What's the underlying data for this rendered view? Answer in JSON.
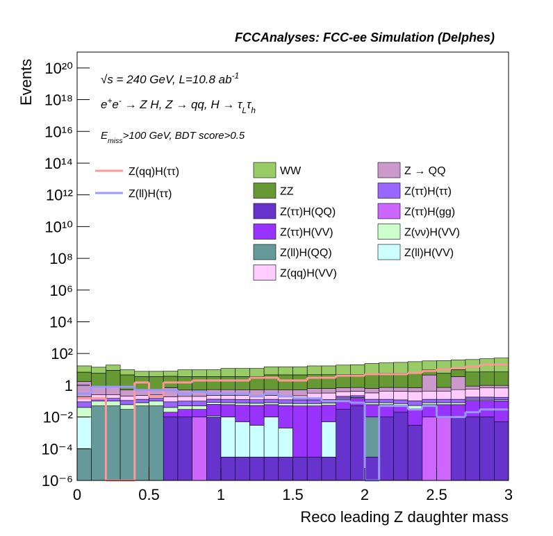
{
  "chart_data": {
    "type": "stacked-histogram",
    "title": "FCCAnalyses: FCC-ee Simulation (Delphes)",
    "x_label": "Reco leading Z daughter mass",
    "y_label": "Events",
    "annotations": [
      [
        {
          "text": "√s = 240 GeV, L=10.8 ab"
        },
        {
          "text": "-1",
          "script": "sup"
        }
      ],
      [
        {
          "text": "e"
        },
        {
          "text": "+",
          "script": "sup"
        },
        {
          "text": "e"
        },
        {
          "text": "-",
          "script": "sup"
        },
        {
          "text": " → Z H, Z  → qq, H  → τ"
        },
        {
          "text": "L",
          "script": "sub"
        },
        {
          "text": "τ"
        },
        {
          "text": "h",
          "script": "sub"
        }
      ],
      [
        {
          "text": "E"
        },
        {
          "text": "miss",
          "script": "sub"
        },
        {
          "text": ">100 GeV, BDT score>0.5"
        }
      ]
    ],
    "log_y": true,
    "xlim": [
      0,
      3
    ],
    "xticks": [
      0,
      0.5,
      1,
      1.5,
      2,
      2.5,
      3
    ],
    "ylim": [
      1e-06,
      1e+21
    ],
    "yticks": [
      {
        "value": 1e-06,
        "label": "10⁻⁶"
      },
      {
        "value": 0.0001,
        "label": "10⁻⁴"
      },
      {
        "value": 0.01,
        "label": "10⁻²"
      },
      1,
      {
        "value": 100,
        "label": "10²"
      },
      {
        "value": 10000.0,
        "label": "10⁴"
      },
      {
        "value": 1000000.0,
        "label": "10⁶"
      },
      {
        "value": 100000000.0,
        "label": "10⁸"
      },
      {
        "value": 10000000000.0,
        "label": "10¹⁰"
      },
      {
        "value": 1000000000000.0,
        "label": "10¹²"
      },
      {
        "value": 100000000000000.0,
        "label": "10¹⁴"
      },
      {
        "value": 1e+16,
        "label": "10¹⁶"
      },
      {
        "value": 1e+18,
        "label": "10¹⁸"
      },
      {
        "value": 1e+20,
        "label": "10²⁰"
      }
    ],
    "bins": [
      0,
      0.1,
      0.2,
      0.3,
      0.4,
      0.5,
      0.6,
      0.7,
      0.8,
      0.9,
      1,
      1.1,
      1.2,
      1.3,
      1.4,
      1.5,
      1.6,
      1.7,
      1.8,
      1.9,
      2,
      2.1,
      2.2,
      2.3,
      2.4,
      2.5,
      2.6,
      2.7,
      2.8,
      2.9,
      3
    ],
    "series": [
      {
        "name": "WW",
        "color": "#99cc66",
        "values": [
          10,
          8,
          10,
          5,
          4,
          4,
          4,
          6,
          6,
          6,
          8,
          8,
          8,
          10,
          10,
          10,
          12,
          12,
          14,
          15,
          18,
          20,
          22,
          25,
          25,
          30,
          30,
          35,
          40,
          45
        ]
      },
      {
        "name": "ZZ",
        "color": "#669933",
        "values": [
          5,
          5,
          8,
          4,
          3,
          3,
          3,
          3,
          3,
          3,
          3,
          3,
          3,
          4,
          4,
          4,
          4,
          4,
          4,
          4,
          5,
          5,
          5,
          5,
          5,
          5,
          6,
          6,
          6,
          6
        ]
      },
      {
        "name": "Z → QQ",
        "color": "#cc99cc",
        "values": [
          1.5,
          0.5,
          0.5,
          0.3,
          0.3,
          0.3,
          0.5,
          0.3,
          0.3,
          0.3,
          0.3,
          0.3,
          0.3,
          0.3,
          0.3,
          0.3,
          0.3,
          0.3,
          0.3,
          0.3,
          0.3,
          0.3,
          0.3,
          0.3,
          4,
          0.3,
          3,
          0.3,
          0.3,
          0.3
        ]
      },
      {
        "name": "Z(qq)H(VV)",
        "color": "#ffccff",
        "values": [
          0.1,
          0.1,
          0.1,
          0.1,
          0.1,
          0.1,
          0.1,
          0.1,
          0.1,
          0.1,
          0.1,
          0.1,
          0.1,
          0.1,
          0.1,
          0.1,
          0.2,
          0.2,
          0.2,
          0.2,
          0.2,
          0.3,
          0.3,
          0.3,
          0.3,
          0.3,
          0.4,
          0.4,
          0.5,
          0.5
        ]
      },
      {
        "name": "Z(ττ)H(ττ)",
        "color": "#9966ff",
        "values": [
          0.05,
          0.05,
          0.05,
          0.05,
          0.05,
          0.05,
          0.05,
          0.05,
          0.05,
          0.05,
          0.05,
          0.05,
          0.05,
          0.05,
          0.05,
          0.05,
          0.05,
          0.05,
          0.05,
          0.05,
          0.05,
          0.05,
          0.05,
          0.05,
          0.05,
          0.05,
          0.05,
          0.05,
          0.05,
          0.05
        ]
      },
      {
        "name": "Z(νν)H(VV)",
        "color": "#ccffcc",
        "values": [
          0.03,
          0.05,
          0.05,
          0.03,
          0.03,
          0.05,
          0.02,
          0.02,
          0.02,
          0.02,
          0.02,
          0.02,
          0.02,
          0.02,
          0.02,
          0.02,
          0.02,
          0.02,
          0.02,
          0.02,
          0.02,
          0.02,
          0.02,
          0.02,
          0.02,
          0.02,
          0.02,
          0.02,
          0.02,
          0.02
        ]
      },
      {
        "name": "Z(ττ)H(VV)",
        "color": "#9933ff",
        "values": [
          0,
          0,
          0,
          0,
          0,
          0,
          0.01,
          0.02,
          0.02,
          0.05,
          0.05,
          0.05,
          0.05,
          0.05,
          0.05,
          0.05,
          0.05,
          0.05,
          0.1,
          0.1,
          0.05,
          0.05,
          0.03,
          0.03,
          0.05,
          0.05,
          0.05,
          0.1,
          0.1,
          0.1
        ]
      },
      {
        "name": "Z(ll)H(VV)",
        "color": "#ccffff",
        "values": [
          0.01,
          0,
          0,
          0,
          0,
          0,
          0,
          0,
          0,
          0.002,
          0.01,
          0.005,
          0.003,
          0.01,
          0.002,
          0,
          0,
          0.005,
          0,
          0,
          0,
          0,
          0,
          0,
          0,
          0,
          0,
          0,
          0,
          0
        ]
      },
      {
        "name": "Z(ττ)H(gg)",
        "color": "#cc66ff",
        "values": [
          0,
          0,
          0,
          0,
          0,
          0,
          0,
          0,
          0.01,
          0,
          0,
          0,
          0,
          0,
          0,
          0,
          0,
          0,
          0,
          0,
          0,
          0,
          0,
          0,
          0.01,
          0.01,
          0,
          0,
          0,
          0
        ]
      },
      {
        "name": "Z(ll)H(QQ)",
        "color": "#669999",
        "values": [
          0.0001,
          0.05,
          0.05,
          0.03,
          0.05,
          0.05,
          0,
          0,
          0,
          0,
          0,
          0,
          0,
          0,
          0,
          0,
          0,
          0,
          0,
          0,
          0.01,
          0,
          0,
          0,
          0,
          0,
          0,
          0,
          0,
          0
        ]
      },
      {
        "name": "Z(ττ)H(QQ)",
        "color": "#6633cc",
        "values": [
          0,
          0,
          0,
          0,
          0,
          0,
          0.01,
          0.01,
          0,
          0.01,
          3e-05,
          3e-05,
          3e-05,
          3e-05,
          3e-05,
          3e-05,
          3e-05,
          3e-05,
          0.03,
          0.05,
          3e-05,
          0.01,
          0.02,
          0.003,
          0,
          0,
          0.01,
          0.01,
          0.01,
          0.005
        ]
      }
    ],
    "lines": [
      {
        "name": "Z(qq)H(ττ)",
        "color": "#ff9999",
        "values": [
          0.15,
          0.15,
          1e-06,
          1e-06,
          1.5,
          0.2,
          1.5,
          1.5,
          2,
          2,
          2,
          2,
          3,
          3,
          2,
          2,
          3,
          3,
          4,
          4,
          5,
          5,
          5,
          6,
          8,
          10,
          12,
          15,
          20,
          20
        ]
      },
      {
        "name": "Z(ll)H(ττ)",
        "color": "#9999ff",
        "values": [
          0.3,
          0.8,
          0.8,
          0.8,
          0.5,
          0.5,
          0.5,
          0.3,
          0.4,
          0.3,
          0.3,
          0.3,
          0.2,
          0.3,
          0.2,
          0.15,
          0.15,
          0.1,
          0.1,
          0.08,
          1e-06,
          0.05,
          0.05,
          0.03,
          0.05,
          0.01,
          0.01,
          0.02,
          0.03,
          0.03
        ]
      }
    ]
  }
}
